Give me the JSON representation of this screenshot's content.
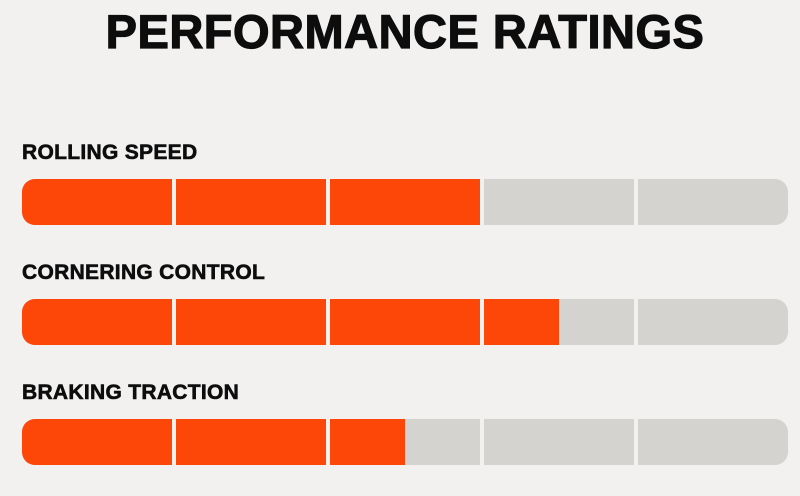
{
  "title": "PERFORMANCE RATINGS",
  "colors": {
    "accent": "#FC4708",
    "empty": "#D5D3D0",
    "background": "#F2F1F0",
    "text": "#0D0D0D"
  },
  "ratings": [
    {
      "label": "ROLLING SPEED",
      "value": 3,
      "max": 5
    },
    {
      "label": "CORNERING CONTROL",
      "value": 3.5,
      "max": 5
    },
    {
      "label": "BRAKING TRACTION",
      "value": 2.5,
      "max": 5
    }
  ],
  "chart_data": {
    "type": "bar",
    "title": "PERFORMANCE RATINGS",
    "categories": [
      "ROLLING SPEED",
      "CORNERING CONTROL",
      "BRAKING TRACTION"
    ],
    "values": [
      3,
      3.5,
      2.5
    ],
    "value_range": [
      0,
      5
    ],
    "segments_per_bar": 5,
    "orientation": "horizontal",
    "legend": "none",
    "grid": false,
    "filled_color": "#FC4708",
    "empty_color": "#D5D3D0"
  }
}
